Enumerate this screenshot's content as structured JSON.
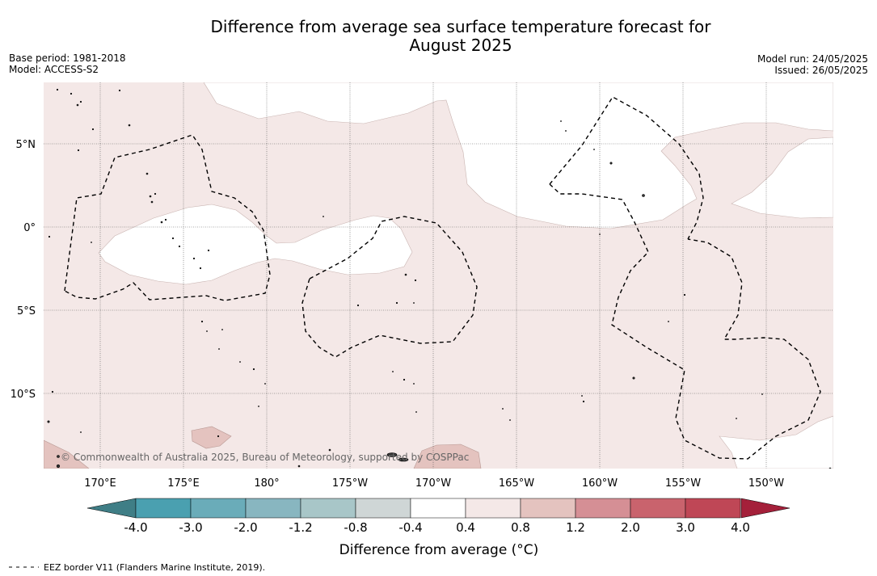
{
  "title": {
    "line1": "Difference from average sea surface temperature forecast for",
    "line2": "August 2025"
  },
  "meta": {
    "base_period": "Base period: 1981-2018",
    "model": "Model: ACCESS-S2",
    "model_run": "Model run: 24/05/2025",
    "issued": "Issued: 26/05/2025"
  },
  "map": {
    "latitude_labels": [
      "5°N",
      "0°",
      "5°S",
      "10°S"
    ],
    "longitude_labels": [
      "170°E",
      "175°E",
      "180°",
      "175°W",
      "170°W",
      "165°W",
      "160°W",
      "155°W",
      "150°W"
    ],
    "copyright": "© Commonwealth of Australia 2025, Bureau of Meteorology, supported by COSPPac",
    "colors": {
      "anomaly_0_4_to_0_8": "#f4e8e7",
      "anomaly_0_8_to_1_2": "#e4c3bf",
      "neutral": "#ffffff"
    }
  },
  "colorbar": {
    "label": "Difference from average (°C)",
    "tick_labels": [
      "-4.0",
      "-3.0",
      "-2.0",
      "-1.2",
      "-0.8",
      "-0.4",
      "0.4",
      "0.8",
      "1.2",
      "2.0",
      "3.0",
      "4.0"
    ],
    "colors": [
      "#4aa0b0",
      "#6aacb9",
      "#88b6c0",
      "#a8c6c8",
      "#cfd6d6",
      "#ffffff",
      "#f4e8e7",
      "#e4c3bf",
      "#d58f95",
      "#c9636d",
      "#bf4756"
    ],
    "under_color": "#3f7e86",
    "over_color": "#a4203a"
  },
  "legend_note": "EEZ border V11 (Flanders Marine Institute, 2019)."
}
